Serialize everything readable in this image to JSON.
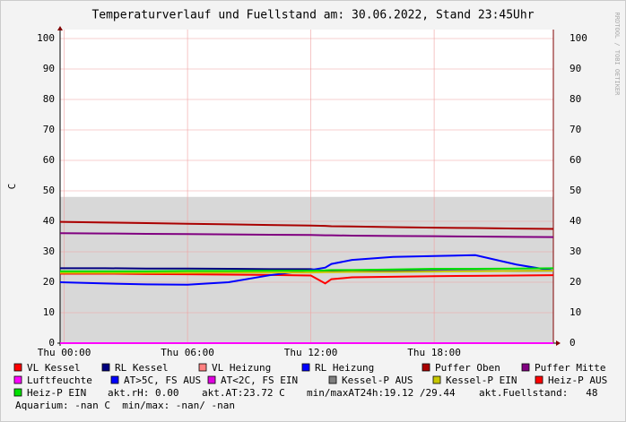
{
  "chart_data": {
    "type": "line",
    "title": "Temperaturverlauf und Fuellstand am: 30.06.2022, Stand 23:45Uhr",
    "watermark": "RRDTOOL / TOBI OETIKER",
    "y_label": "C",
    "x": [
      -0.2,
      2,
      4,
      6,
      8,
      10,
      12,
      12.7,
      13,
      14,
      16,
      18,
      20,
      22,
      23.8
    ],
    "xlim": [
      -0.2,
      23.8
    ],
    "xticks": [
      {
        "value": 0,
        "label": "Thu 00:00"
      },
      {
        "value": 6,
        "label": "Thu 06:00"
      },
      {
        "value": 12,
        "label": "Thu 12:00"
      },
      {
        "value": 18,
        "label": "Thu 18:00"
      }
    ],
    "ylim": [
      0,
      100
    ],
    "yticks": [
      0,
      10,
      20,
      30,
      40,
      50,
      60,
      70,
      80,
      90,
      100
    ],
    "grid": true,
    "area": {
      "color": "#d8d8d8",
      "values": [
        48,
        48,
        48,
        48,
        48,
        48,
        48,
        48,
        48,
        48,
        48,
        48,
        48,
        48,
        48
      ]
    },
    "series": [
      {
        "name": "VL Kessel",
        "color": "#ff0000",
        "values": [
          22.8,
          22.8,
          22.7,
          22.6,
          22.5,
          22.4,
          22.2,
          19.6,
          21,
          21.6,
          21.8,
          22,
          22.1,
          22.2,
          22.3
        ]
      },
      {
        "name": "RL Kessel",
        "color": "#000080",
        "values": [
          24.6,
          24.6,
          24.5,
          24.5,
          24.4,
          24.3,
          24.3,
          23.6,
          23.6,
          23.6,
          23.6,
          23.7,
          23.7,
          23.7,
          23.8
        ]
      },
      {
        "name": "VL Heizung",
        "color": "#ff8080",
        "values": [
          null,
          null,
          null,
          null,
          null,
          null,
          null,
          null,
          null,
          null,
          null,
          null,
          null,
          null,
          null
        ]
      },
      {
        "name": "RL Heizung",
        "color": "#0000ff",
        "values": [
          20,
          19.6,
          19.3,
          19.2,
          20,
          22.3,
          24,
          24.8,
          26,
          27.3,
          28.3,
          28.6,
          28.9,
          25.8,
          23.8
        ]
      },
      {
        "name": "Puffer Oben",
        "color": "#aa0000",
        "values": [
          39.8,
          39.6,
          39.4,
          39.2,
          39,
          38.8,
          38.6,
          38.5,
          38.4,
          38.3,
          38.1,
          37.9,
          37.8,
          37.6,
          37.5
        ]
      },
      {
        "name": "Puffer Mitte",
        "color": "#800080",
        "values": [
          36.1,
          36,
          35.9,
          35.8,
          35.7,
          35.6,
          35.5,
          35.4,
          35.4,
          35.3,
          35.2,
          35.1,
          35,
          34.9,
          34.8
        ]
      },
      {
        "name": "Luftfeuchte",
        "color": "#ff00ff",
        "values": [
          0,
          0,
          0,
          0,
          0,
          0,
          0,
          0,
          0,
          0,
          0,
          0,
          0,
          0,
          0
        ]
      },
      {
        "name": "AT>5C, FS AUS",
        "color": "#0000ff",
        "values": [
          null,
          null,
          null,
          null,
          null,
          null,
          null,
          null,
          null,
          null,
          null,
          null,
          null,
          null,
          null
        ]
      },
      {
        "name": "AT<2C, FS EIN",
        "color": "#e000e0",
        "values": [
          null,
          null,
          null,
          null,
          null,
          null,
          null,
          null,
          null,
          null,
          null,
          null,
          null,
          null,
          null
        ]
      },
      {
        "name": "Kessel-P AUS",
        "color": "#808080",
        "values": [
          null,
          null,
          null,
          null,
          null,
          null,
          null,
          null,
          null,
          null,
          null,
          null,
          null,
          null,
          null
        ]
      },
      {
        "name": "Kessel-P EIN",
        "color": "#c8c800",
        "values": [
          23.1,
          23.1,
          23.1,
          23.1,
          23.2,
          23.2,
          23.2,
          23.3,
          23.3,
          23.4,
          23.4,
          23.5,
          23.6,
          23.7,
          23.8
        ]
      },
      {
        "name": "Heiz-P AUS",
        "color": "#ff0000",
        "values": [
          null,
          null,
          null,
          null,
          null,
          null,
          null,
          null,
          null,
          null,
          null,
          null,
          null,
          null,
          null
        ]
      },
      {
        "name": "Heiz-P EIN",
        "color": "#00e000",
        "values": [
          23.6,
          23.6,
          23.6,
          23.7,
          23.7,
          23.8,
          23.8,
          23.9,
          24,
          24,
          24.2,
          24.4,
          24.4,
          24.5,
          24.6
        ]
      }
    ],
    "legend_notes": [
      "akt.rH: 0.00",
      "akt.AT:23.72 C",
      "min/maxAT24h:19.12 /29.44",
      "akt.Fuellstand:   48",
      "Aquarium: -nan C  min/max: -nan/ -nan"
    ]
  }
}
